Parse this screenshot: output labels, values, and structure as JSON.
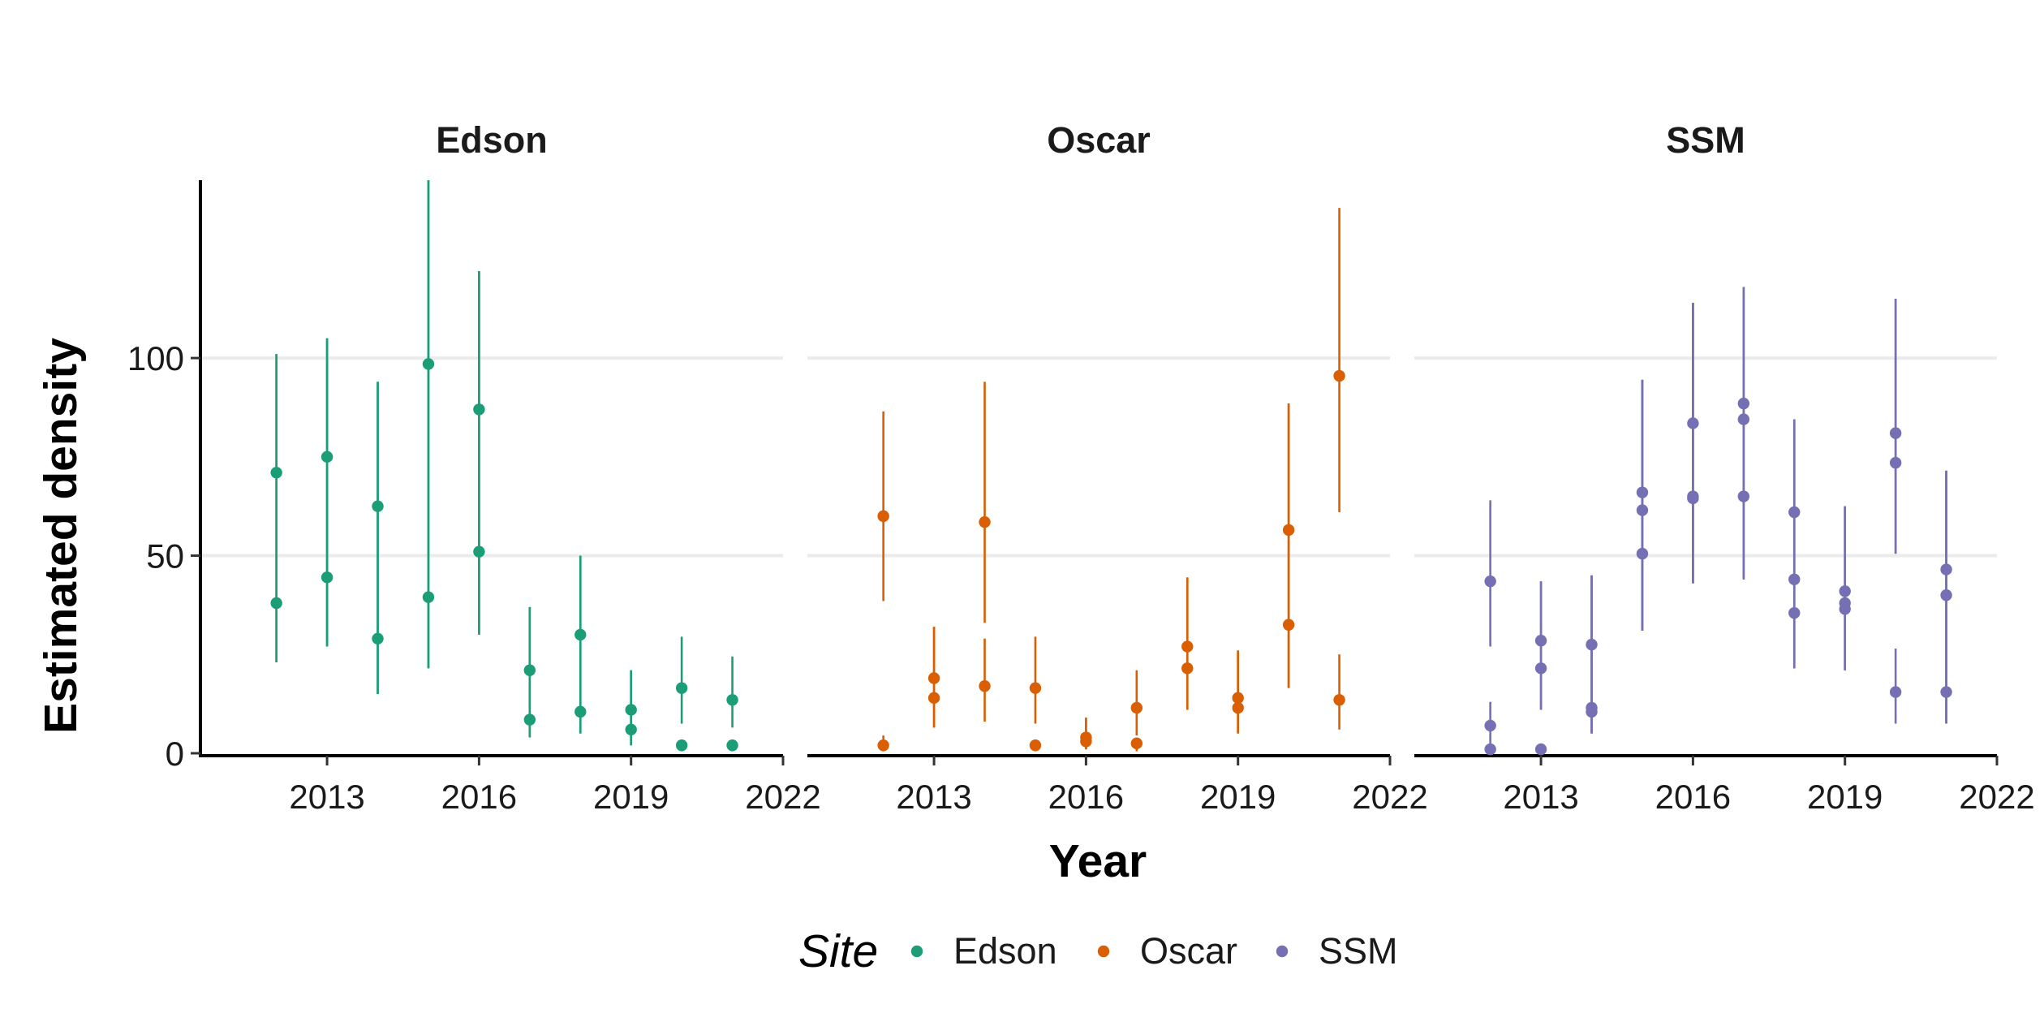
{
  "chart_data": {
    "type": "scatter",
    "subtype": "point-range, faceted by site",
    "xlabel": "Year",
    "ylabel": "Estimated density",
    "xlim": [
      2010.5,
      2022
    ],
    "ylim": [
      0,
      145
    ],
    "x_ticks": [
      2013,
      2016,
      2019,
      2022
    ],
    "y_ticks": [
      0,
      50,
      100
    ],
    "grid": "horizontal major gridlines",
    "legend": {
      "title": "Site",
      "position": "bottom",
      "entries": [
        "Edson",
        "Oscar",
        "SSM"
      ]
    },
    "panels": [
      {
        "title": "Edson",
        "color": "#1b9e77",
        "points": [
          {
            "year": 2012,
            "estimate": 71,
            "lower": 23,
            "upper": 101
          },
          {
            "year": 2012,
            "estimate": 38,
            "lower": 23,
            "upper": 101
          },
          {
            "year": 2013,
            "estimate": 75,
            "lower": 27,
            "upper": 105
          },
          {
            "year": 2013,
            "estimate": 44.5,
            "lower": 27,
            "upper": 105
          },
          {
            "year": 2014,
            "estimate": 62.5,
            "lower": 15,
            "upper": 94
          },
          {
            "year": 2014,
            "estimate": 29,
            "lower": 15,
            "upper": 94
          },
          {
            "year": 2015,
            "estimate": 98.5,
            "lower": 21.5,
            "upper": 145
          },
          {
            "year": 2015,
            "estimate": 39.5,
            "lower": 21.5,
            "upper": 145
          },
          {
            "year": 2016,
            "estimate": 87,
            "lower": 30,
            "upper": 122
          },
          {
            "year": 2016,
            "estimate": 51,
            "lower": 30,
            "upper": 122
          },
          {
            "year": 2017,
            "estimate": 21,
            "lower": 4,
            "upper": 37
          },
          {
            "year": 2017,
            "estimate": 8.5,
            "lower": 4,
            "upper": 37
          },
          {
            "year": 2018,
            "estimate": 30,
            "lower": 5,
            "upper": 50
          },
          {
            "year": 2018,
            "estimate": 10.5,
            "lower": 5,
            "upper": 50
          },
          {
            "year": 2019,
            "estimate": 11,
            "lower": 2,
            "upper": 21
          },
          {
            "year": 2019,
            "estimate": 6,
            "lower": 2,
            "upper": 21
          },
          {
            "year": 2020,
            "estimate": 16.5,
            "lower": 7.5,
            "upper": 29.5
          },
          {
            "year": 2020,
            "estimate": 2,
            "lower": 0.5,
            "upper": 3.5
          },
          {
            "year": 2021,
            "estimate": 13.5,
            "lower": 6.5,
            "upper": 24.5
          },
          {
            "year": 2021,
            "estimate": 2,
            "lower": 0.5,
            "upper": 3.5
          }
        ]
      },
      {
        "title": "Oscar",
        "color": "#d95f02",
        "points": [
          {
            "year": 2012,
            "estimate": 60,
            "lower": 38.5,
            "upper": 86.5
          },
          {
            "year": 2012,
            "estimate": 2,
            "lower": 0.5,
            "upper": 4.5
          },
          {
            "year": 2013,
            "estimate": 19,
            "lower": 6.5,
            "upper": 32
          },
          {
            "year": 2013,
            "estimate": 14,
            "lower": 6.5,
            "upper": 32
          },
          {
            "year": 2014,
            "estimate": 58.5,
            "lower": 33,
            "upper": 94
          },
          {
            "year": 2014,
            "estimate": 17,
            "lower": 8,
            "upper": 29
          },
          {
            "year": 2015,
            "estimate": 16.5,
            "lower": 7.5,
            "upper": 29.5
          },
          {
            "year": 2015,
            "estimate": 2,
            "lower": 0.5,
            "upper": 3.5
          },
          {
            "year": 2016,
            "estimate": 4,
            "lower": 1,
            "upper": 9
          },
          {
            "year": 2016,
            "estimate": 3,
            "lower": 1,
            "upper": 9
          },
          {
            "year": 2017,
            "estimate": 11.5,
            "lower": 4.5,
            "upper": 21
          },
          {
            "year": 2017,
            "estimate": 2.5,
            "lower": 0.5,
            "upper": 4
          },
          {
            "year": 2018,
            "estimate": 27,
            "lower": 11,
            "upper": 44.5
          },
          {
            "year": 2018,
            "estimate": 21.5,
            "lower": 11,
            "upper": 44.5
          },
          {
            "year": 2019,
            "estimate": 14,
            "lower": 5,
            "upper": 26
          },
          {
            "year": 2019,
            "estimate": 11.5,
            "lower": 5,
            "upper": 26
          },
          {
            "year": 2020,
            "estimate": 56.5,
            "lower": 16.5,
            "upper": 88.5
          },
          {
            "year": 2020,
            "estimate": 32.5,
            "lower": 16.5,
            "upper": 88.5
          },
          {
            "year": 2021,
            "estimate": 95.5,
            "lower": 61,
            "upper": 138
          },
          {
            "year": 2021,
            "estimate": 13.5,
            "lower": 6,
            "upper": 25
          }
        ]
      },
      {
        "title": "SSM",
        "color": "#7570b3",
        "points": [
          {
            "year": 2012,
            "estimate": 43.5,
            "lower": 27,
            "upper": 64
          },
          {
            "year": 2012,
            "estimate": 7,
            "lower": 2,
            "upper": 13
          },
          {
            "year": 2012,
            "estimate": 1,
            "lower": 0,
            "upper": 2.5
          },
          {
            "year": 2013,
            "estimate": 28.5,
            "lower": 11,
            "upper": 43.5
          },
          {
            "year": 2013,
            "estimate": 21.5,
            "lower": 11,
            "upper": 43.5
          },
          {
            "year": 2013,
            "estimate": 1,
            "lower": 0,
            "upper": 2.5
          },
          {
            "year": 2014,
            "estimate": 27.5,
            "lower": 5,
            "upper": 45
          },
          {
            "year": 2014,
            "estimate": 11.5,
            "lower": 5,
            "upper": 45
          },
          {
            "year": 2014,
            "estimate": 10.5,
            "lower": 5,
            "upper": 45
          },
          {
            "year": 2015,
            "estimate": 66,
            "lower": 31,
            "upper": 94.5
          },
          {
            "year": 2015,
            "estimate": 61.5,
            "lower": 31,
            "upper": 94.5
          },
          {
            "year": 2015,
            "estimate": 50.5,
            "lower": 31,
            "upper": 94.5
          },
          {
            "year": 2016,
            "estimate": 83.5,
            "lower": 43,
            "upper": 114
          },
          {
            "year": 2016,
            "estimate": 65,
            "lower": 43,
            "upper": 114
          },
          {
            "year": 2016,
            "estimate": 64.5,
            "lower": 43,
            "upper": 114
          },
          {
            "year": 2017,
            "estimate": 88.5,
            "lower": 44,
            "upper": 118
          },
          {
            "year": 2017,
            "estimate": 84.5,
            "lower": 44,
            "upper": 118
          },
          {
            "year": 2017,
            "estimate": 65,
            "lower": 44,
            "upper": 118
          },
          {
            "year": 2018,
            "estimate": 61,
            "lower": 21.5,
            "upper": 84.5
          },
          {
            "year": 2018,
            "estimate": 44,
            "lower": 21.5,
            "upper": 84.5
          },
          {
            "year": 2018,
            "estimate": 35.5,
            "lower": 21.5,
            "upper": 84.5
          },
          {
            "year": 2019,
            "estimate": 41,
            "lower": 21,
            "upper": 62.5
          },
          {
            "year": 2019,
            "estimate": 38,
            "lower": 21,
            "upper": 62.5
          },
          {
            "year": 2019,
            "estimate": 36.5,
            "lower": 21,
            "upper": 62.5
          },
          {
            "year": 2020,
            "estimate": 81,
            "lower": 50.5,
            "upper": 115
          },
          {
            "year": 2020,
            "estimate": 73.5,
            "lower": 50.5,
            "upper": 115
          },
          {
            "year": 2020,
            "estimate": 15.5,
            "lower": 7.5,
            "upper": 26.5
          },
          {
            "year": 2021,
            "estimate": 46.5,
            "lower": 7.5,
            "upper": 71.5
          },
          {
            "year": 2021,
            "estimate": 40,
            "lower": 7.5,
            "upper": 71.5
          },
          {
            "year": 2021,
            "estimate": 15.5,
            "lower": 7.5,
            "upper": 71.5
          }
        ]
      }
    ]
  }
}
